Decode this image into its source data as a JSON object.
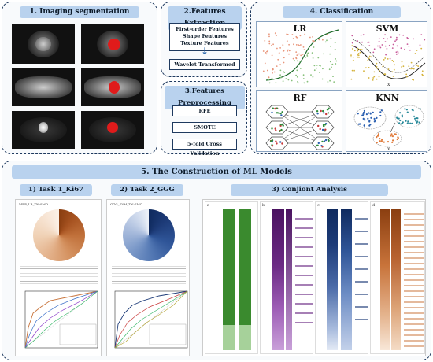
{
  "section1": {
    "title": "1. Imaging segmentation"
  },
  "section2": {
    "title": "2.Features Extraction",
    "features": [
      "First-order Features",
      "Shape Features",
      "Texture Features"
    ],
    "wavelet": "Wavelet Transformed"
  },
  "section3": {
    "title": "3.Features Preprocessing",
    "steps": [
      "RFE",
      "SMOTE",
      "5-fold Cross Validation"
    ]
  },
  "section4": {
    "title": "4. Classification",
    "models": [
      "LR",
      "SVM",
      "RF",
      "KNN"
    ],
    "axis_x": "x",
    "axis_y": "y"
  },
  "section5": {
    "title": "5. The Construction of ML Models",
    "task1": {
      "title": "1) Task 1_Ki67",
      "plot_label": "MRP_LR_TN-SMO"
    },
    "task2": {
      "title": "2) Task 2_GGG",
      "plot_label": "GGG_SVM_TN-SMO"
    },
    "conjoint": {
      "title": "3) Conjiont Analysis",
      "panel_labels": [
        "a",
        "b",
        "c",
        "d"
      ]
    }
  },
  "colors": {
    "panel_border": "#1f3a5f",
    "header_fill": "#b9d2ee",
    "lesion": "#e01b1b",
    "orange": "#c8733a",
    "navy": "#1d3b78",
    "green": "#3a8a2e",
    "purple": "#6b2a84"
  }
}
